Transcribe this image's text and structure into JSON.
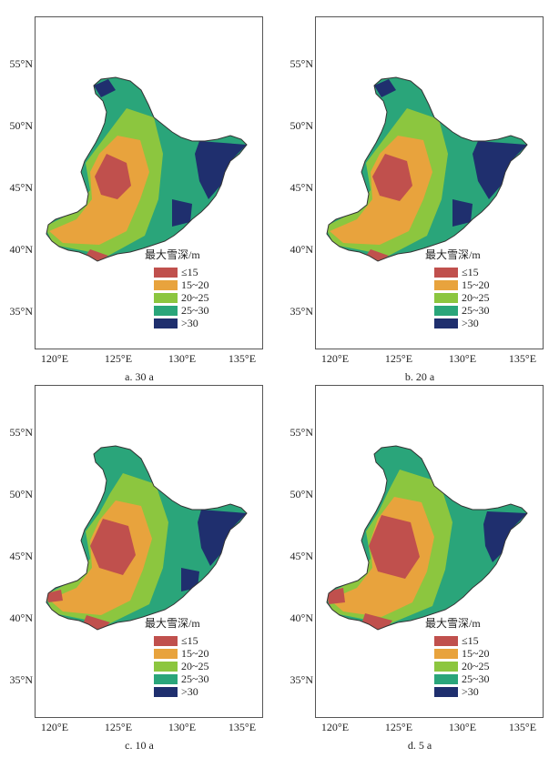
{
  "latitude_ticks": [
    "55°N",
    "50°N",
    "45°N",
    "40°N",
    "35°N"
  ],
  "longitude_ticks": [
    "120°E",
    "125°E",
    "130°E",
    "135°E"
  ],
  "legend": {
    "title": "最大雪深/m",
    "items": [
      {
        "label": "≤15",
        "color": "#c0504d"
      },
      {
        "label": "15~20",
        "color": "#e8a33d"
      },
      {
        "label": "20~25",
        "color": "#8cc63f"
      },
      {
        "label": "25~30",
        "color": "#2aa57a"
      },
      {
        "label": ">30",
        "color": "#1f2f6e"
      }
    ]
  },
  "panels": [
    {
      "caption": "a.  30 a"
    },
    {
      "caption": "b.  20 a"
    },
    {
      "caption": "c.  10 a"
    },
    {
      "caption": "d.  5 a"
    }
  ]
}
